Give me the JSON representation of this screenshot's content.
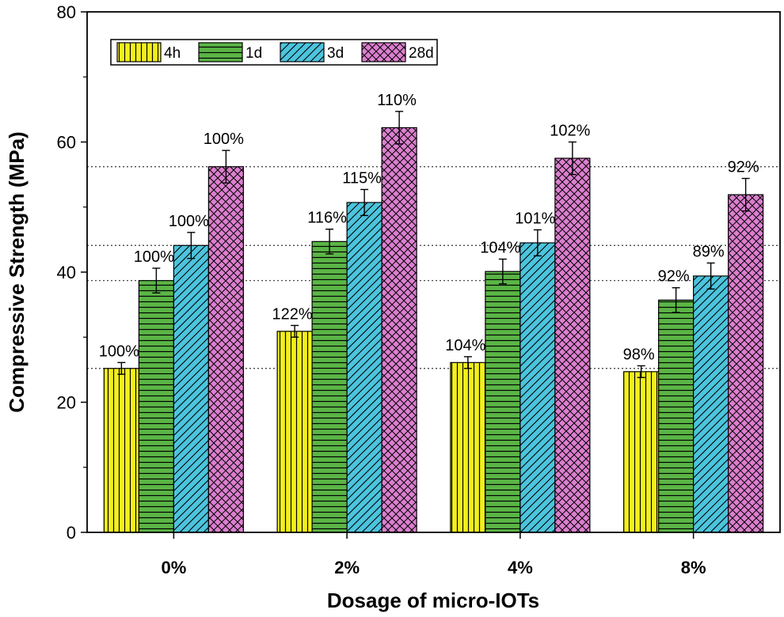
{
  "chart_data": {
    "type": "bar",
    "title": "",
    "xlabel": "Dosage of micro-IOTs",
    "ylabel": "Compressive Strength (MPa)",
    "ylim": [
      0,
      80
    ],
    "yticks": [
      0,
      20,
      40,
      60,
      80
    ],
    "categories": [
      "0%",
      "2%",
      "4%",
      "8%"
    ],
    "legend": "top-left",
    "series": [
      {
        "name": "4h",
        "color": "#f2ef1c",
        "pattern": "vertical-lines",
        "values": [
          25.2,
          30.9,
          26.1,
          24.7
        ],
        "errors": [
          0.9,
          0.9,
          0.9,
          0.9
        ],
        "labels": [
          "100%",
          "122%",
          "104%",
          "98%"
        ]
      },
      {
        "name": "1d",
        "color": "#5bb546",
        "pattern": "horizontal-lines",
        "values": [
          38.7,
          44.7,
          40.1,
          35.7
        ],
        "errors": [
          1.9,
          1.9,
          1.9,
          1.9
        ],
        "labels": [
          "100%",
          "116%",
          "104%",
          "92%"
        ]
      },
      {
        "name": "3d",
        "color": "#4cc4dd",
        "pattern": "diagonal-lines",
        "values": [
          44.1,
          50.7,
          44.5,
          39.4
        ],
        "errors": [
          2.0,
          2.0,
          2.0,
          2.0
        ],
        "labels": [
          "100%",
          "115%",
          "101%",
          "89%"
        ]
      },
      {
        "name": "28d",
        "color": "#dc7fcf",
        "pattern": "crosshatch",
        "values": [
          56.2,
          62.2,
          57.5,
          51.9
        ],
        "errors": [
          2.5,
          2.5,
          2.5,
          2.5
        ],
        "labels": [
          "100%",
          "110%",
          "102%",
          "92%"
        ]
      }
    ],
    "reference_lines": [
      25.2,
      38.7,
      44.1,
      56.2
    ]
  }
}
